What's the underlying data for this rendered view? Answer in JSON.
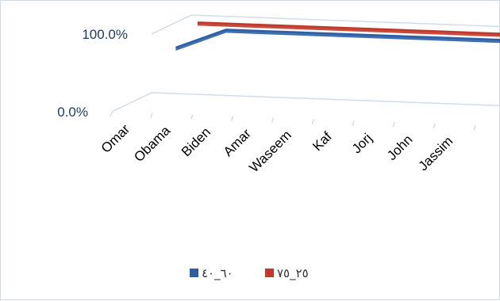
{
  "chart_data": {
    "type": "line",
    "style": "3d",
    "categories": [
      "Omar",
      "Obama",
      "Biden",
      "Amar",
      "Waseem",
      "Kaf",
      "Jorj",
      "John",
      "Jassim"
    ],
    "series": [
      {
        "name": "٦٠_٤٠",
        "color": "#2e5fa6",
        "values": [
          0.75,
          1.0,
          1.0,
          1.0,
          1.0,
          1.0,
          1.0,
          1.0,
          1.0
        ]
      },
      {
        "name": "٢٥_٧٥",
        "color": "#c0392b",
        "values": [
          1.0,
          1.0,
          1.0,
          1.0,
          1.0,
          1.0,
          1.0,
          1.0,
          1.0
        ]
      }
    ],
    "y_ticks": [
      "0.0%",
      "100.0%"
    ],
    "ylim": [
      0,
      1
    ],
    "gridlines": true,
    "legend_position": "bottom"
  }
}
